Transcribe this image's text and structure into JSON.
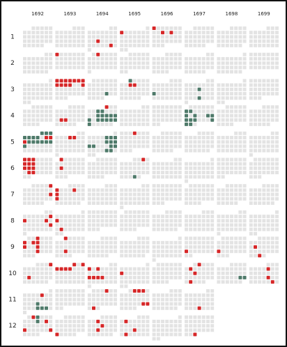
{
  "chart_data": {
    "type": "calendar",
    "years": [
      1692,
      1693,
      1694,
      1695,
      1696,
      1697,
      1698,
      1699
    ],
    "months": [
      1,
      2,
      3,
      4,
      5,
      6,
      7,
      8,
      9,
      10,
      11,
      12
    ],
    "colors": {
      "empty": "#e3e3e3",
      "red": "#d62728",
      "green": "#4f7a6a"
    },
    "red": [
      [
        [],
        [],
        [
          19,
          29
        ],
        [
          2
        ],
        [
          1,
          10,
          12
        ],
        [],
        [],
        []
      ],
      [
        [],
        [
          1
        ],
        [
          2
        ],
        [],
        [],
        [],
        [],
        []
      ],
      [
        [],
        [
          1,
          2,
          3,
          4,
          5,
          6,
          7,
          8,
          9,
          10,
          11,
          14
        ],
        [],
        [
          8,
          9
        ],
        [],
        [],
        [],
        []
      ],
      [
        [],
        [
          20,
          21
        ],
        [
          1
        ],
        [],
        [],
        [],
        [],
        []
      ],
      [
        [
          2,
          9,
          10,
          11
        ],
        [
          6,
          7
        ],
        [],
        [
          4
        ],
        [],
        [],
        [],
        []
      ],
      [
        [
          1,
          2,
          3,
          8,
          9,
          10,
          15,
          16,
          17,
          23,
          24
        ],
        [
          1,
          15
        ],
        [],
        [
          3
        ],
        [],
        [],
        [],
        []
      ],
      [
        [
          5,
          19
        ],
        [
          5,
          9,
          12,
          19
        ],
        [],
        [],
        [],
        [],
        [],
        []
      ],
      [
        [
          9,
          10,
          15,
          23
        ],
        [
          9,
          24
        ],
        [],
        [],
        [],
        [],
        [],
        []
      ],
      [
        [
          3,
          7,
          9,
          10,
          14,
          17,
          24
        ],
        [
          1,
          22
        ],
        [],
        [],
        [],
        [
          22
        ],
        [
          21
        ],
        [
          14,
          29
        ]
      ],
      [
        [
          4,
          20
        ],
        [
          1,
          3,
          4,
          5,
          6,
          7
        ],
        [
          3,
          5,
          17,
          18,
          19,
          20
        ],
        [
          9
        ],
        [],
        [
          2,
          7,
          15,
          28
        ],
        [],
        [
          8,
          22,
          30
        ]
      ],
      [
        [
          6
        ],
        [],
        [
          4,
          29
        ],
        [
          2,
          3,
          4,
          25,
          26
        ],
        [],
        [
          27
        ],
        null,
        null
      ],
      [
        [
          2,
          12,
          21,
          27
        ],
        [
          27
        ],
        [
          7,
          15,
          21
        ],
        [
          5,
          21,
          26
        ],
        [],
        [
          31
        ],
        null,
        null
      ]
    ],
    "green": [
      [
        [],
        [],
        [],
        [],
        [],
        [],
        [],
        []
      ],
      [
        [],
        [],
        [],
        [],
        [],
        [],
        [],
        []
      ],
      [
        [],
        [],
        [
          25
        ],
        [
          1
        ],
        [
          18
        ],
        [
          13,
          27
        ],
        [],
        []
      ],
      [
        [],
        [],
        [
          6,
          7,
          13,
          14,
          15,
          16,
          17,
          18,
          20,
          21,
          22,
          23,
          24,
          25
        ],
        [],
        [],
        [
          7,
          8,
          14,
          16,
          19,
          20,
          21,
          22,
          23,
          27,
          28,
          29
        ],
        [],
        []
      ],
      [
        [
          1,
          2,
          3,
          4,
          5,
          6,
          7,
          12,
          13,
          14,
          15,
          16,
          17,
          18
        ],
        [],
        [
          6,
          7,
          8,
          13,
          14,
          15,
          16,
          17,
          21,
          22,
          27,
          28
        ],
        [],
        [],
        [],
        [],
        []
      ],
      [
        [],
        [],
        [],
        [
          29
        ],
        [],
        [],
        [],
        []
      ],
      [
        [],
        [],
        [],
        [],
        [],
        [],
        [],
        []
      ],
      [
        [],
        [],
        [],
        [],
        [],
        [],
        [],
        []
      ],
      [
        [],
        [],
        [],
        [],
        [],
        [],
        [],
        []
      ],
      [
        [],
        [],
        [],
        [],
        [],
        [],
        [
          24,
          25
        ],
        []
      ],
      [
        [
          19,
          26,
          27,
          28
        ],
        [],
        [],
        [],
        [],
        [],
        null,
        null
      ],
      [
        [
          3,
          10
        ],
        [],
        [],
        [],
        [],
        [],
        null,
        null
      ]
    ]
  }
}
